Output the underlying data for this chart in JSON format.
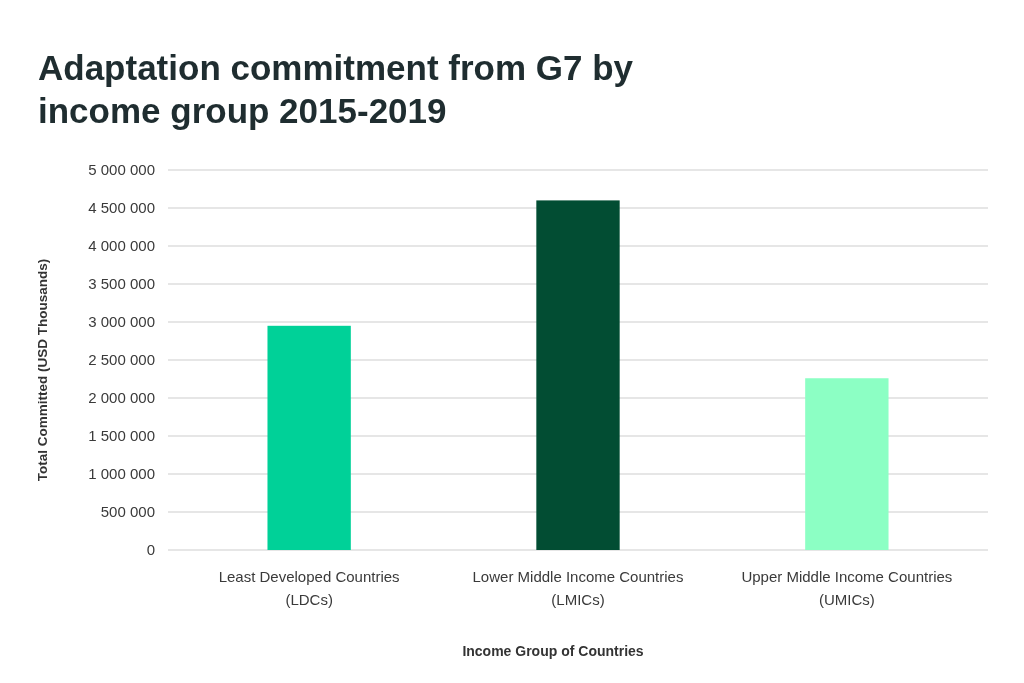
{
  "chart_data": {
    "type": "bar",
    "title": "Adaptation commitment from G7 by\nincome group 2015-2019",
    "xlabel": "Income Group of Countries",
    "ylabel": "Total Committed (USD Thousands)",
    "categories": [
      "Least Developed Countries\n(LDCs)",
      "Lower Middle Income Countries\n(LMICs)",
      "Upper Middle Income Countries\n(UMICs)"
    ],
    "values": [
      2950000,
      4600000,
      2260000
    ],
    "colors": [
      "#00d198",
      "#024d33",
      "#8cffc4"
    ],
    "ylim": [
      0,
      5000000
    ],
    "yticks": [
      0,
      {
        "value": 500000,
        "label": "500 000"
      },
      {
        "value": 1000000,
        "label": "1 000 000"
      },
      {
        "value": 1500000,
        "label": "1 500 000"
      },
      {
        "value": 2000000,
        "label": "2 000 000"
      },
      {
        "value": 2500000,
        "label": "2 500 000"
      },
      {
        "value": 3000000,
        "label": "3 000 000"
      },
      {
        "value": 3500000,
        "label": "3 500 000"
      },
      {
        "value": 4000000,
        "label": "4 000 000"
      },
      {
        "value": 4500000,
        "label": "4 500 000"
      },
      {
        "value": 5000000,
        "label": "5 000 000"
      }
    ],
    "grid": "y"
  }
}
